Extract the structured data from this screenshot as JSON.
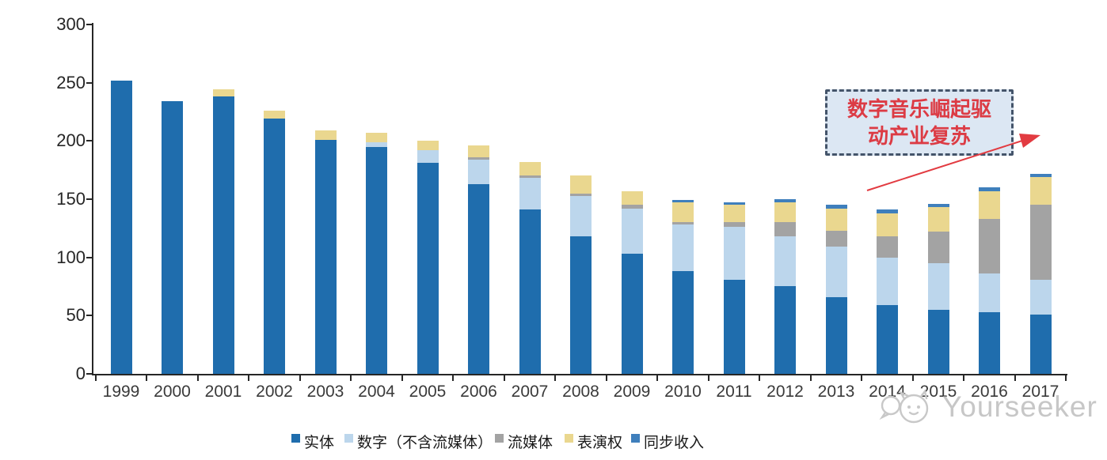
{
  "chart_data": {
    "type": "bar",
    "stacked": true,
    "title": "",
    "xlabel": "",
    "ylabel": "",
    "ylim": [
      0,
      300
    ],
    "yticks": [
      0,
      50,
      100,
      150,
      200,
      250,
      300
    ],
    "grid": false,
    "legend_position": "bottom",
    "categories": [
      "1999",
      "2000",
      "2001",
      "2002",
      "2003",
      "2004",
      "2005",
      "2006",
      "2007",
      "2008",
      "2009",
      "2010",
      "2011",
      "2012",
      "2013",
      "2014",
      "2015",
      "2016",
      "2017"
    ],
    "series": [
      {
        "name": "实体",
        "color": "#1F6DAD",
        "values": [
          252,
          234,
          238,
          219,
          201,
          195,
          181,
          163,
          141,
          118,
          103,
          88,
          81,
          75,
          66,
          59,
          55,
          53,
          51
        ]
      },
      {
        "name": "数字（不含流媒体）",
        "color": "#BCD6EC",
        "values": [
          0,
          0,
          0,
          0,
          0,
          4,
          11,
          21,
          27,
          35,
          39,
          40,
          45,
          43,
          43,
          41,
          40,
          33,
          30
        ]
      },
      {
        "name": "流媒体",
        "color": "#A3A3A3",
        "values": [
          0,
          0,
          0,
          0,
          0,
          0,
          0,
          2,
          2,
          2,
          3,
          2,
          4,
          12,
          14,
          18,
          27,
          47,
          64
        ]
      },
      {
        "name": "表演权",
        "color": "#EAD78F",
        "values": [
          0,
          0,
          6,
          7,
          8,
          8,
          8,
          10,
          12,
          15,
          12,
          17,
          15,
          17,
          19,
          20,
          21,
          24,
          24
        ]
      },
      {
        "name": "同步收入",
        "color": "#3F7FBC",
        "values": [
          0,
          0,
          0,
          0,
          0,
          0,
          0,
          0,
          0,
          0,
          0,
          2,
          2,
          3,
          3,
          3,
          3,
          3,
          3
        ]
      }
    ]
  },
  "annotation": {
    "line1": "数字音乐崛起驱",
    "line2": "动产业复苏",
    "text_color": "#DC3B44",
    "box_fill": "#DCE7F3",
    "box_border": "#44546A",
    "arrow_color": "#E23B41"
  },
  "axis_color": "#262626",
  "watermark": {
    "text": "Yourseeker",
    "color": "#C7C7C7"
  }
}
